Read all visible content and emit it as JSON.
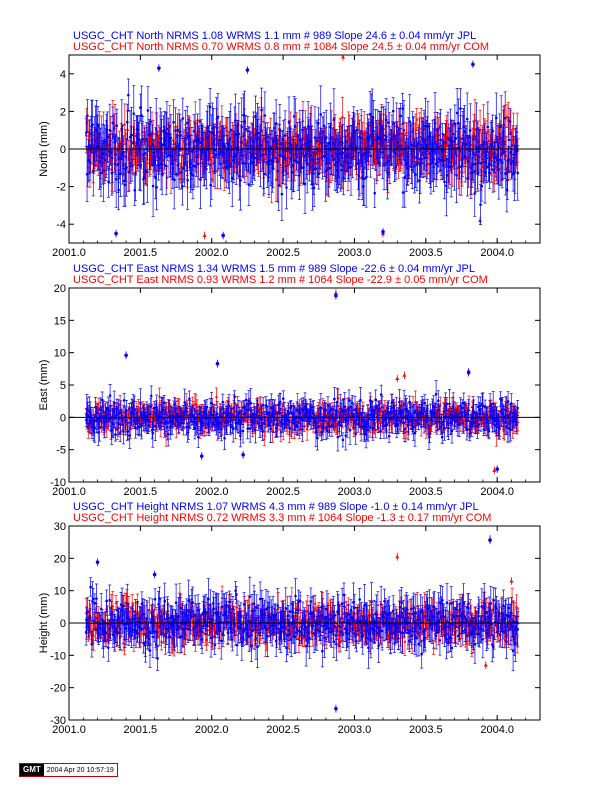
{
  "colors": {
    "jpl": "#0000ff",
    "com": "#ff0000",
    "axis": "#000000"
  },
  "stamp": {
    "logo": "GMT",
    "timestamp": "2004 Apr 20 10:57:19"
  },
  "chart_data": [
    {
      "type": "scatter",
      "title_lines": [
        {
          "text": "USGC_CHT North NRMS 1.08 WRMS  1.1 mm # 989 Slope   24.6 ±  0.04 mm/yr JPL",
          "color": "#0000ff"
        },
        {
          "text": "USGC_CHT North NRMS 0.70 WRMS  0.8 mm # 1084 Slope   24.5 ±  0.04 mm/yr COM",
          "color": "#ff0000"
        }
      ],
      "ylabel": "North (mm)",
      "xlim": [
        2001.0,
        2004.3
      ],
      "ylim": [
        -5,
        5
      ],
      "xticks": [
        "2001.0",
        "2001.5",
        "2002.0",
        "2002.5",
        "2003.0",
        "2003.5",
        "2004.0"
      ],
      "yticks": [
        "-4",
        "-2",
        "0",
        "2",
        "4"
      ],
      "series": [
        {
          "name": "JPL",
          "count": 989,
          "spread": 1.1,
          "color": "#0000ff",
          "outliers": [
            [
              2001.63,
              4.3
            ],
            [
              2002.25,
              4.2
            ],
            [
              2003.83,
              4.5
            ],
            [
              2001.33,
              -4.5
            ],
            [
              2002.08,
              -4.6
            ],
            [
              2003.2,
              -4.4
            ]
          ]
        },
        {
          "name": "COM",
          "count": 1084,
          "spread": 0.8,
          "color": "#ff0000",
          "outliers": [
            [
              2002.92,
              4.9
            ],
            [
              2001.95,
              -4.6
            ],
            [
              2003.2,
              -4.5
            ],
            [
              2003.88,
              -3.8
            ]
          ]
        }
      ],
      "data_start": 2001.12,
      "data_end": 2004.15
    },
    {
      "type": "scatter",
      "title_lines": [
        {
          "text": "USGC_CHT East NRMS 1.34 WRMS  1.5 mm # 989 Slope  -22.6 ±  0.04 mm/yr JPL",
          "color": "#0000ff"
        },
        {
          "text": "USGC_CHT East NRMS 0.93 WRMS  1.2 mm # 1064 Slope  -22.9 ±  0.05 mm/yr COM",
          "color": "#ff0000"
        }
      ],
      "ylabel": "East (mm)",
      "xlim": [
        2001.0,
        2004.3
      ],
      "ylim": [
        -10,
        20
      ],
      "xticks": [
        "2001.0",
        "2001.5",
        "2002.0",
        "2002.5",
        "2003.0",
        "2003.5",
        "2004.0"
      ],
      "yticks": [
        "-10",
        "-5",
        "0",
        "5",
        "10",
        "15",
        "20"
      ],
      "series": [
        {
          "name": "JPL",
          "count": 989,
          "spread": 1.5,
          "color": "#0000ff",
          "outliers": [
            [
              2002.87,
              18.8
            ],
            [
              2001.4,
              9.6
            ],
            [
              2002.04,
              8.3
            ],
            [
              2003.8,
              7.0
            ],
            [
              2003.13,
              1.0
            ],
            [
              2002.22,
              -5.8
            ],
            [
              2001.93,
              -6.0
            ],
            [
              2004.0,
              -8.0
            ]
          ]
        },
        {
          "name": "COM",
          "count": 1064,
          "spread": 1.2,
          "color": "#ff0000",
          "outliers": [
            [
              2002.87,
              19.2
            ],
            [
              2003.8,
              6.9
            ],
            [
              2003.35,
              6.5
            ],
            [
              2003.3,
              6.0
            ],
            [
              2003.98,
              -8.2
            ]
          ]
        }
      ],
      "data_start": 2001.12,
      "data_end": 2004.15
    },
    {
      "type": "scatter",
      "title_lines": [
        {
          "text": "USGC_CHT Height NRMS 1.07 WRMS  4.3 mm # 989 Slope   -1.0 ±  0.14 mm/yr JPL",
          "color": "#0000ff"
        },
        {
          "text": "USGC_CHT Height NRMS 0.72 WRMS  3.3 mm # 1064 Slope   -1.3 ±  0.17 mm/yr COM",
          "color": "#ff0000"
        }
      ],
      "ylabel": "Height (mm)",
      "xlim": [
        2001.0,
        2004.3
      ],
      "ylim": [
        -30,
        30
      ],
      "xticks": [
        "2001.0",
        "2001.5",
        "2002.0",
        "2002.5",
        "2003.0",
        "2003.5",
        "2004.0"
      ],
      "yticks": [
        "-30",
        "-20",
        "-10",
        "0",
        "10",
        "20",
        "30"
      ],
      "series": [
        {
          "name": "JPL",
          "count": 989,
          "spread": 4.3,
          "color": "#0000ff",
          "outliers": [
            [
              2001.2,
              18.8
            ],
            [
              2003.95,
              25.6
            ],
            [
              2002.87,
              -26.5
            ],
            [
              2001.6,
              15.0
            ]
          ]
        },
        {
          "name": "COM",
          "count": 1064,
          "spread": 3.3,
          "color": "#ff0000",
          "outliers": [
            [
              2003.95,
              26.0
            ],
            [
              2003.3,
              20.5
            ],
            [
              2004.1,
              13.0
            ],
            [
              2003.92,
              -13.0
            ]
          ]
        }
      ],
      "data_start": 2001.12,
      "data_end": 2004.15
    }
  ]
}
